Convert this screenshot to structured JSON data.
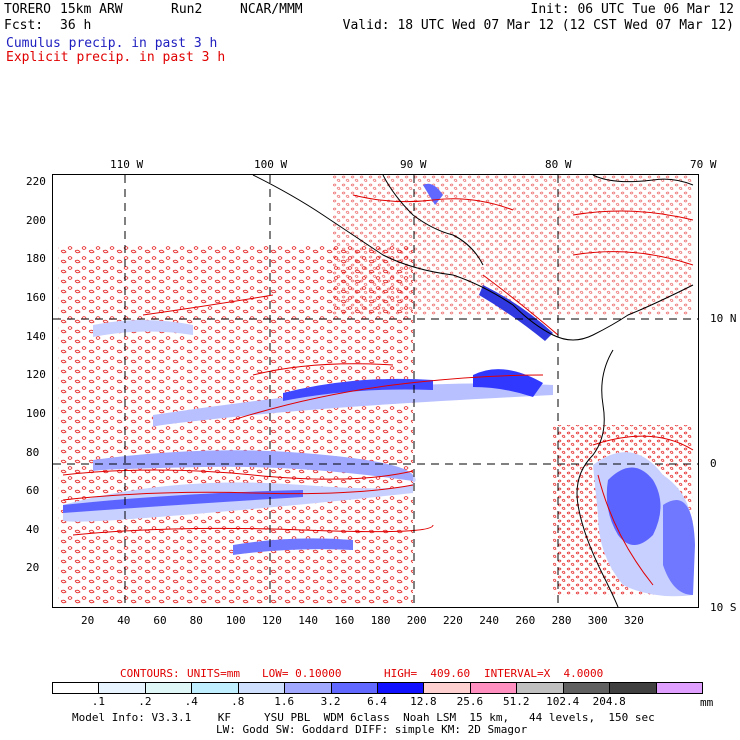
{
  "header": {
    "model": "TORERO",
    "resolution": "15km ARW",
    "run": "Run2",
    "org": "NCAR/MMM",
    "init": "Init: 06 UTC Tue 06 Mar 12",
    "fcst_label": "Fcst:",
    "fcst_value": "36 h",
    "valid": "Valid: 18 UTC Wed 07 Mar 12 (12 CST Wed 07 Mar 12)"
  },
  "legend_lines": {
    "cumulus": "Cumulus precip. in past 3 h",
    "explicit": "Explicit precip. in past 3 h"
  },
  "colors": {
    "cumulus": "#2020c0",
    "explicit": "#e00000"
  },
  "top_axis_labels": [
    "110 W",
    "100 W",
    "90 W",
    "80 W",
    "70 W"
  ],
  "right_axis_labels": [
    "10 N",
    "0",
    "10 S"
  ],
  "y_axis_labels": [
    "220",
    "200",
    "180",
    "160",
    "140",
    "120",
    "100",
    "80",
    "60",
    "40",
    "20"
  ],
  "x_axis_labels": [
    "20",
    "40",
    "60",
    "80",
    "100",
    "120",
    "140",
    "160",
    "180",
    "200",
    "220",
    "240",
    "260",
    "280",
    "300",
    "320"
  ],
  "contour_info": {
    "label": "CONTOURS:",
    "units": "UNITS=mm",
    "low": "LOW= 0.10000",
    "high": "HIGH=  409.60",
    "interval": "INTERVAL=X  4.0000"
  },
  "colorbar": {
    "colors": [
      "#ffffff",
      "#e8f4ff",
      "#dff7f7",
      "#c0f0ff",
      "#cfe0ff",
      "#a0a8ff",
      "#6068ff",
      "#1010ff",
      "#ffd0d0",
      "#ff90c0",
      "#c0c0c0",
      "#606060",
      "#404040",
      "#e0a0ff"
    ],
    "labels": [
      ".1",
      ".2",
      ".4",
      ".8",
      "1.6",
      "3.2",
      "6.4",
      "12.8",
      "25.6",
      "51.2",
      "102.4",
      "204.8"
    ],
    "unit": "mm"
  },
  "footer": {
    "line1": "Model Info: V3.3.1    KF     YSU PBL  WDM 6class  Noah LSM  15 km,   44 levels,  150 sec",
    "line2": "LW: Godd SW: Goddard DIFF: simple KM: 2D Smagor"
  }
}
